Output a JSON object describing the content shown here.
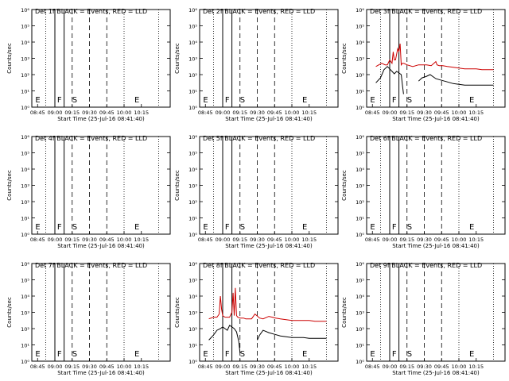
{
  "chart_data": [
    {
      "title": "Det 1f BLACK = Events, RED = LLD",
      "type": "line",
      "xlabel": "Start Time (25-Jul-16 08:41:40)",
      "ylabel": "Counts/sec",
      "xtick_labels": [
        "08:45",
        "09:00",
        "09:15",
        "09:30",
        "09:45",
        "10:00",
        "10:15"
      ],
      "ytick_labels": [
        "10⁰",
        "10¹",
        "10²",
        "10³",
        "10⁴",
        "10⁵",
        "10⁶"
      ],
      "markers": [
        "E",
        "F",
        "S",
        "E"
      ],
      "series": []
    },
    {
      "title": "Det 2f BLACK = Events, RED = LLD",
      "type": "line",
      "xlabel": "Start Time (25-Jul-16 08:41:40)",
      "ylabel": "Counts/sec",
      "xtick_labels": [
        "08:45",
        "09:00",
        "09:15",
        "09:30",
        "09:45",
        "10:00",
        "10:15"
      ],
      "ytick_labels": [
        "10⁰",
        "10¹",
        "10²",
        "10³",
        "10⁴",
        "10⁵",
        "10⁶"
      ],
      "markers": [
        "E",
        "F",
        "S",
        "E"
      ],
      "series": []
    },
    {
      "title": "Det 3f BLACK = Events, RED = LLD",
      "type": "line",
      "xlabel": "Start Time (25-Jul-16 08:41:40)",
      "ylabel": "Counts/sec",
      "xtick_labels": [
        "08:45",
        "09:00",
        "09:15",
        "09:30",
        "09:45",
        "10:00",
        "10:15"
      ],
      "ytick_labels": [
        "10⁰",
        "10¹",
        "10²",
        "10³",
        "10⁴",
        "10⁵",
        "10⁶"
      ],
      "markers": [
        "E",
        "F",
        "S",
        "E"
      ],
      "series": [
        {
          "color": "#cc0000",
          "x": [
            48,
            53,
            56,
            58,
            60,
            62,
            63,
            64,
            65,
            67,
            68,
            69,
            70,
            71,
            72,
            75,
            80,
            85,
            88,
            92,
            96,
            100,
            101,
            103,
            106,
            110,
            115,
            120,
            125,
            130,
            135,
            140,
            145,
            150
          ],
          "y": [
            2.5,
            2.7,
            2.6,
            2.6,
            2.9,
            2.7,
            3.4,
            2.9,
            2.9,
            3.6,
            3.4,
            3.9,
            2.6,
            2.7,
            2.7,
            2.6,
            2.5,
            2.6,
            2.6,
            2.6,
            2.55,
            2.8,
            2.6,
            2.55,
            2.55,
            2.5,
            2.45,
            2.4,
            2.35,
            2.35,
            2.35,
            2.3,
            2.3,
            2.3
          ]
        },
        {
          "color": "#000000",
          "x": [
            48,
            52,
            55,
            58,
            60,
            62,
            64,
            66,
            68,
            70,
            71,
            72,
            73,
            74,
            75,
            78,
            80,
            85,
            88,
            90,
            92,
            95,
            100,
            105,
            110,
            115,
            120,
            125,
            130,
            135,
            140,
            145,
            150
          ],
          "y": [
            1.5,
            1.8,
            2.3,
            2.5,
            2.35,
            2.2,
            2.05,
            2.2,
            2.1,
            2.0,
            1.4,
            0.8,
            null,
            null,
            null,
            null,
            null,
            1.6,
            1.8,
            1.85,
            1.9,
            2.0,
            1.75,
            1.65,
            1.55,
            1.45,
            1.4,
            1.35,
            1.35,
            1.35,
            1.35,
            1.35,
            1.35
          ]
        }
      ]
    },
    {
      "title": "Det 4f BLACK = Events, RED = LLD",
      "type": "line",
      "xlabel": "Start Time (25-Jul-16 08:41:40)",
      "ylabel": "Counts/sec",
      "xtick_labels": [
        "08:45",
        "09:00",
        "09:15",
        "09:30",
        "09:45",
        "10:00",
        "10:15"
      ],
      "ytick_labels": [
        "10⁰",
        "10¹",
        "10²",
        "10³",
        "10⁴",
        "10⁵",
        "10⁶"
      ],
      "markers": [
        "E",
        "F",
        "S",
        "E"
      ],
      "series": []
    },
    {
      "title": "Det 5f BLACK = Events, RED = LLD",
      "type": "line",
      "xlabel": "Start Time (25-Jul-16 08:41:40)",
      "ylabel": "Counts/sec",
      "xtick_labels": [
        "08:45",
        "09:00",
        "09:15",
        "09:30",
        "09:45",
        "10:00",
        "10:15"
      ],
      "ytick_labels": [
        "10⁰",
        "10¹",
        "10²",
        "10³",
        "10⁴",
        "10⁵",
        "10⁶"
      ],
      "markers": [
        "E",
        "F",
        "S",
        "E"
      ],
      "series": []
    },
    {
      "title": "Det 6f BLACK = Events, RED = LLD",
      "type": "line",
      "xlabel": "Start Time (25-Jul-16 08:41:40)",
      "ylabel": "Counts/sec",
      "xtick_labels": [
        "08:45",
        "09:00",
        "09:15",
        "09:30",
        "09:45",
        "10:00",
        "10:15"
      ],
      "ytick_labels": [
        "10⁰",
        "10¹",
        "10²",
        "10³",
        "10⁴",
        "10⁵",
        "10⁶"
      ],
      "markers": [
        "E",
        "F",
        "S",
        "E"
      ],
      "series": []
    },
    {
      "title": "Det 7f BLACK = Events, RED = LLD",
      "type": "line",
      "xlabel": "Start Time (25-Jul-16 08:41:40)",
      "ylabel": "Counts/sec",
      "xtick_labels": [
        "08:45",
        "09:00",
        "09:15",
        "09:30",
        "09:45",
        "10:00",
        "10:15"
      ],
      "ytick_labels": [
        "10⁰",
        "10¹",
        "10²",
        "10³",
        "10⁴",
        "10⁵",
        "10⁶"
      ],
      "markers": [
        "E",
        "F",
        "S",
        "E"
      ],
      "series": []
    },
    {
      "title": "Det 8f BLACK = Events, RED = LLD",
      "type": "line",
      "xlabel": "Start Time (25-Jul-16 08:41:40)",
      "ylabel": "Counts/sec",
      "xtick_labels": [
        "08:45",
        "09:00",
        "09:15",
        "09:30",
        "09:45",
        "10:00",
        "10:15"
      ],
      "ytick_labels": [
        "10⁰",
        "10¹",
        "10²",
        "10³",
        "10⁴",
        "10⁵",
        "10⁶"
      ],
      "markers": [
        "E",
        "F",
        "S",
        "E"
      ],
      "series": [
        {
          "color": "#cc0000",
          "x": [
            48,
            52,
            55,
            57,
            58,
            59,
            60,
            62,
            64,
            66,
            68,
            69,
            70,
            71,
            72,
            73,
            75,
            78,
            80,
            85,
            88,
            92,
            95,
            100,
            103,
            106,
            110,
            115,
            120,
            125,
            130,
            135,
            140,
            145,
            150
          ],
          "y": [
            2.6,
            2.7,
            2.7,
            2.9,
            4.0,
            3.2,
            2.8,
            2.7,
            2.7,
            2.7,
            3.0,
            4.2,
            2.8,
            4.5,
            2.8,
            2.7,
            2.65,
            2.65,
            2.6,
            2.6,
            2.9,
            2.65,
            2.6,
            2.75,
            2.7,
            2.65,
            2.6,
            2.55,
            2.5,
            2.5,
            2.5,
            2.5,
            2.45,
            2.45,
            2.45
          ]
        },
        {
          "color": "#000000",
          "x": [
            48,
            52,
            55,
            58,
            60,
            62,
            64,
            66,
            68,
            70,
            72,
            74,
            75,
            80,
            85,
            88,
            90,
            92,
            95,
            100,
            105,
            110,
            115,
            120,
            125,
            130,
            135,
            140,
            145,
            150
          ],
          "y": [
            1.3,
            1.6,
            1.9,
            2.0,
            2.1,
            2.0,
            1.9,
            2.2,
            2.1,
            2.0,
            1.8,
            1.2,
            0.5,
            null,
            null,
            null,
            1.3,
            1.6,
            1.9,
            1.75,
            1.65,
            1.55,
            1.5,
            1.45,
            1.45,
            1.45,
            1.4,
            1.4,
            1.4,
            1.4
          ]
        }
      ]
    },
    {
      "title": "Det 9f BLACK = Events, RED = LLD",
      "type": "line",
      "xlabel": "Start Time (25-Jul-16 08:41:40)",
      "ylabel": "Counts/sec",
      "xtick_labels": [
        "08:45",
        "09:00",
        "09:15",
        "09:30",
        "09:45",
        "10:00",
        "10:15"
      ],
      "ytick_labels": [
        "10⁰",
        "10¹",
        "10²",
        "10³",
        "10⁴",
        "10⁵",
        "10⁶"
      ],
      "markers": [
        "E",
        "F",
        "S",
        "E"
      ],
      "series": []
    }
  ]
}
